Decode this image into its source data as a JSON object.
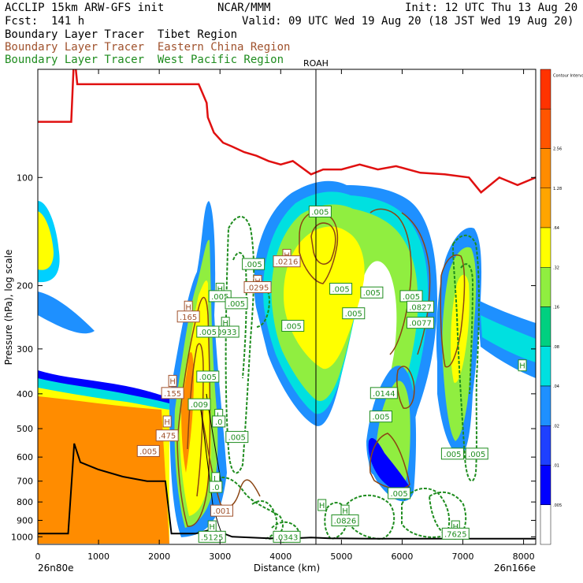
{
  "header": {
    "line1_left": "ACCLIP 15km ARW-GFS init",
    "line1_mid": "NCAR/MMM",
    "line1_right": "Init: 12 UTC Thu 13 Aug 20",
    "line2_left": "Fcst:  141 h",
    "line2_right": "Valid: 09 UTC Wed 19 Aug 20 (18 JST Wed 19 Aug 20)"
  },
  "legend": [
    {
      "text": "Boundary Layer Tracer  Tibet Region",
      "color": "#000000"
    },
    {
      "text": "Boundary Layer Tracer  Eastern China Region",
      "color": "#a0522d"
    },
    {
      "text": "Boundary Layer Tracer  West Pacific Region",
      "color": "#1e8c1e"
    }
  ],
  "chart_data": {
    "type": "cross-section",
    "xlabel": "Distance (km)",
    "ylabel": "Pressure (hPa), log scale",
    "x_ticks": [
      0,
      1000,
      2000,
      3000,
      4000,
      5000,
      6000,
      7000,
      8000
    ],
    "x_range": [
      0,
      8200
    ],
    "y_ticks": [
      100,
      200,
      300,
      400,
      500,
      600,
      700,
      800,
      900,
      1000
    ],
    "y_range": [
      50,
      1050
    ],
    "y_scale": "log",
    "left_endpoint": "26n80e",
    "right_endpoint": "26n166e",
    "marker_label": "ROAH",
    "marker_x": 4580,
    "colorbar_levels": [
      "Contour Interval",
      "2.56",
      "1.28",
      ".64",
      ".32",
      ".16",
      ".08",
      ".04",
      ".02",
      ".01",
      ".005"
    ],
    "colorbar_colors": [
      "#ff3300",
      "#ff5500",
      "#ff8c00",
      "#ffa500",
      "#ffff00",
      "#90ee40",
      "#00d080",
      "#00e0e0",
      "#1e90ff",
      "#1e40ff",
      "#0000ff",
      "#ffffff"
    ],
    "tropopause_x": [
      0,
      300,
      550,
      600,
      650,
      1000,
      1600,
      2100,
      2650,
      2780,
      2800,
      2900,
      3050,
      3200,
      3400,
      3600,
      3800,
      4000,
      4200,
      4500,
      4700,
      5000,
      5300,
      5600,
      5900,
      6300,
      6700,
      7100,
      7300,
      7600,
      7900,
      8200
    ],
    "tropopause_p": [
      70,
      70,
      70,
      45,
      55,
      55,
      55,
      55,
      55,
      62,
      68,
      75,
      80,
      82,
      85,
      87,
      90,
      92,
      90,
      98,
      95,
      95,
      92,
      95,
      93,
      97,
      98,
      100,
      110,
      100,
      105,
      100
    ],
    "surface_x": [
      0,
      200,
      500,
      600,
      700,
      1000,
      1400,
      1800,
      2100,
      2200,
      2300,
      2600,
      2800,
      3000,
      3200,
      3500,
      3800,
      4000,
      4300,
      4500,
      4800,
      5500,
      6500,
      7500,
      8200
    ],
    "surface_p": [
      980,
      980,
      980,
      550,
      620,
      650,
      680,
      700,
      700,
      980,
      980,
      980,
      960,
      970,
      1000,
      1005,
      1010,
      1010,
      1008,
      1005,
      1010,
      1012,
      1012,
      1012,
      1012
    ],
    "labels": [
      {
        "t": ".005",
        "x": 4650,
        "p": 125,
        "c": "#1e8c1e"
      },
      {
        "t": ".005",
        "x": 3550,
        "p": 175,
        "c": "#1e8c1e"
      },
      {
        "t": "H",
        "x": 3620,
        "p": 195,
        "c": "#a0522d"
      },
      {
        "t": ".0295",
        "x": 3620,
        "p": 203,
        "c": "#a0522d"
      },
      {
        "t": "H",
        "x": 4100,
        "p": 165,
        "c": "#a0522d"
      },
      {
        "t": ".0216",
        "x": 4100,
        "p": 172,
        "c": "#a0522d"
      },
      {
        "t": ".005",
        "x": 4200,
        "p": 260,
        "c": "#1e8c1e"
      },
      {
        "t": ".005",
        "x": 4990,
        "p": 205,
        "c": "#1e8c1e"
      },
      {
        "t": ".005",
        "x": 5500,
        "p": 210,
        "c": "#1e8c1e"
      },
      {
        "t": ".005",
        "x": 5200,
        "p": 240,
        "c": "#1e8c1e"
      },
      {
        "t": ".005",
        "x": 6150,
        "p": 215,
        "c": "#1e8c1e"
      },
      {
        "t": ".0827",
        "x": 6300,
        "p": 230,
        "c": "#1e8c1e"
      },
      {
        "t": ".0077",
        "x": 6300,
        "p": 255,
        "c": "#1e8c1e"
      },
      {
        "t": "H",
        "x": 2480,
        "p": 230,
        "c": "#a0522d"
      },
      {
        "t": ".165",
        "x": 2480,
        "p": 245,
        "c": "#a0522d"
      },
      {
        "t": "H",
        "x": 3000,
        "p": 205,
        "c": "#1e8c1e"
      },
      {
        "t": ".005",
        "x": 3000,
        "p": 215,
        "c": "#1e8c1e"
      },
      {
        "t": ".005",
        "x": 3270,
        "p": 225,
        "c": "#1e8c1e"
      },
      {
        "t": "H",
        "x": 3090,
        "p": 255,
        "c": "#1e8c1e"
      },
      {
        "t": ".0933",
        "x": 3090,
        "p": 270,
        "c": "#1e8c1e"
      },
      {
        "t": ".005",
        "x": 2800,
        "p": 270,
        "c": "#1e8c1e"
      },
      {
        "t": ".005",
        "x": 2800,
        "p": 360,
        "c": "#1e8c1e"
      },
      {
        "t": "H",
        "x": 2220,
        "p": 370,
        "c": "#a0522d"
      },
      {
        "t": ".155",
        "x": 2220,
        "p": 400,
        "c": "#a0522d"
      },
      {
        "t": ".009",
        "x": 2660,
        "p": 430,
        "c": "#1e8c1e"
      },
      {
        "t": "L",
        "x": 2980,
        "p": 460,
        "c": "#1e8c1e"
      },
      {
        "t": ".0",
        "x": 2980,
        "p": 480,
        "c": "#1e8c1e"
      },
      {
        "t": ".005",
        "x": 3280,
        "p": 530,
        "c": "#1e8c1e"
      },
      {
        "t": "H",
        "x": 2130,
        "p": 480,
        "c": "#a0522d"
      },
      {
        "t": ".475",
        "x": 2130,
        "p": 525,
        "c": "#a0522d"
      },
      {
        "t": ".005",
        "x": 1820,
        "p": 580,
        "c": "#a0522d"
      },
      {
        "t": ".0144",
        "x": 5700,
        "p": 400,
        "c": "#1e8c1e"
      },
      {
        "t": ".005",
        "x": 5650,
        "p": 465,
        "c": "#1e8c1e"
      },
      {
        "t": ".005",
        "x": 6830,
        "p": 590,
        "c": "#1e8c1e"
      },
      {
        "t": ".005",
        "x": 7230,
        "p": 590,
        "c": "#1e8c1e"
      },
      {
        "t": ".005",
        "x": 5950,
        "p": 760,
        "c": "#1e8c1e"
      },
      {
        "t": "L",
        "x": 2930,
        "p": 690,
        "c": "#1e8c1e"
      },
      {
        "t": ".0",
        "x": 2930,
        "p": 730,
        "c": "#1e8c1e"
      },
      {
        "t": ".001",
        "x": 3030,
        "p": 850,
        "c": "#a0522d"
      },
      {
        "t": "H",
        "x": 5060,
        "p": 850,
        "c": "#1e8c1e"
      },
      {
        "t": ".0826",
        "x": 5060,
        "p": 905,
        "c": "#1e8c1e"
      },
      {
        "t": "H",
        "x": 2870,
        "p": 940,
        "c": "#1e8c1e"
      },
      {
        "t": ".5125",
        "x": 2870,
        "p": 1005,
        "c": "#1e8c1e"
      },
      {
        "t": ".0343",
        "x": 4100,
        "p": 1005,
        "c": "#1e8c1e"
      },
      {
        "t": "H",
        "x": 6880,
        "p": 940,
        "c": "#1e8c1e"
      },
      {
        "t": ".7625",
        "x": 6880,
        "p": 985,
        "c": "#1e8c1e"
      },
      {
        "t": "H",
        "x": 7980,
        "p": 335,
        "c": "#1e8c1e"
      },
      {
        "t": "H",
        "x": 4680,
        "p": 820,
        "c": "#1e8c1e"
      }
    ]
  }
}
